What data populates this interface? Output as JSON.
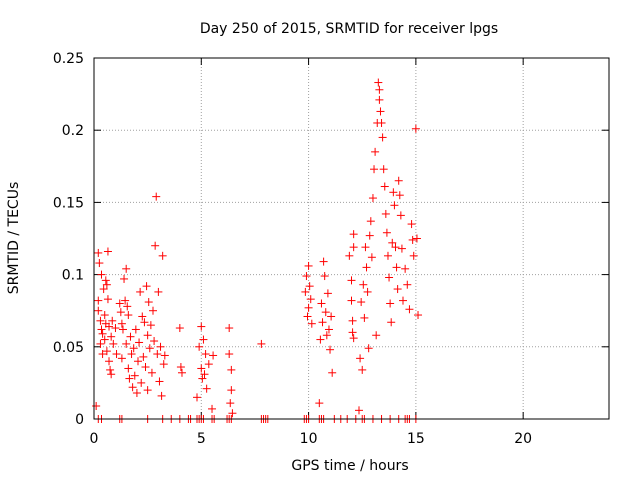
{
  "chart_data": {
    "type": "scatter",
    "title": "Day 250 of 2015, SRMTID for receiver lpgs",
    "xlabel": "GPS time / hours",
    "ylabel": "SRMTID / TECUs",
    "xlim": [
      0,
      24
    ],
    "ylim": [
      0,
      0.25
    ],
    "xticks": [
      0,
      5,
      10,
      15,
      20
    ],
    "xtick_labels": [
      "0",
      "5",
      "10",
      "15",
      "20"
    ],
    "yticks": [
      0,
      0.05,
      0.1,
      0.15,
      0.2,
      0.25
    ],
    "ytick_labels": [
      "0",
      "0.05",
      "0.1",
      "0.15",
      "0.2",
      "0.25"
    ],
    "grid": true,
    "marker": "plus",
    "color": "#ff0000",
    "series": [
      {
        "name": "SRMTID",
        "points": [
          [
            0.1,
            0.009
          ],
          [
            0.2,
            0.115
          ],
          [
            0.2,
            0.082
          ],
          [
            0.2,
            0.075
          ],
          [
            0.25,
            0.108
          ],
          [
            0.3,
            0.068
          ],
          [
            0.3,
            0.052
          ],
          [
            0.35,
            0.1
          ],
          [
            0.35,
            0.062
          ],
          [
            0.4,
            0.059
          ],
          [
            0.4,
            0.045
          ],
          [
            0.45,
            0.09
          ],
          [
            0.5,
            0.072
          ],
          [
            0.5,
            0.055
          ],
          [
            0.55,
            0.096
          ],
          [
            0.55,
            0.066
          ],
          [
            0.6,
            0.093
          ],
          [
            0.6,
            0.047
          ],
          [
            0.65,
            0.116
          ],
          [
            0.65,
            0.083
          ],
          [
            0.7,
            0.064
          ],
          [
            0.7,
            0.04
          ],
          [
            0.75,
            0.034
          ],
          [
            0.8,
            0.057
          ],
          [
            0.8,
            0.031
          ],
          [
            0.85,
            0.068
          ],
          [
            0.9,
            0.052
          ],
          [
            1.0,
            0.063
          ],
          [
            1.05,
            0.045
          ],
          [
            1.2,
            0.08
          ],
          [
            1.25,
            0.074
          ],
          [
            1.3,
            0.066
          ],
          [
            1.3,
            0.042
          ],
          [
            1.35,
            0.062
          ],
          [
            1.4,
            0.097
          ],
          [
            1.45,
            0.082
          ],
          [
            1.5,
            0.104
          ],
          [
            1.5,
            0.052
          ],
          [
            1.55,
            0.078
          ],
          [
            1.6,
            0.072
          ],
          [
            1.6,
            0.035
          ],
          [
            1.65,
            0.028
          ],
          [
            1.7,
            0.057
          ],
          [
            1.75,
            0.045
          ],
          [
            1.8,
            0.022
          ],
          [
            1.85,
            0.049
          ],
          [
            1.9,
            0.03
          ],
          [
            1.95,
            0.062
          ],
          [
            2.0,
            0.018
          ],
          [
            2.05,
            0.04
          ],
          [
            2.1,
            0.053
          ],
          [
            2.15,
            0.088
          ],
          [
            2.2,
            0.025
          ],
          [
            2.25,
            0.071
          ],
          [
            2.3,
            0.043
          ],
          [
            2.35,
            0.067
          ],
          [
            2.4,
            0.036
          ],
          [
            2.45,
            0.092
          ],
          [
            2.5,
            0.058
          ],
          [
            2.5,
            0.02
          ],
          [
            2.55,
            0.081
          ],
          [
            2.6,
            0.049
          ],
          [
            2.65,
            0.065
          ],
          [
            2.7,
            0.032
          ],
          [
            2.75,
            0.075
          ],
          [
            2.8,
            0.054
          ],
          [
            2.85,
            0.12
          ],
          [
            2.9,
            0.154
          ],
          [
            2.95,
            0.045
          ],
          [
            3.0,
            0.088
          ],
          [
            3.05,
            0.026
          ],
          [
            3.1,
            0.05
          ],
          [
            3.15,
            0.016
          ],
          [
            3.2,
            0.113
          ],
          [
            3.25,
            0.038
          ],
          [
            3.3,
            0.044
          ],
          [
            4.0,
            0.063
          ],
          [
            4.05,
            0.036
          ],
          [
            4.1,
            0.032
          ],
          [
            4.8,
            0.015
          ],
          [
            4.9,
            0.05
          ],
          [
            5.0,
            0.064
          ],
          [
            5.0,
            0.035
          ],
          [
            5.05,
            0.028
          ],
          [
            5.1,
            0.055
          ],
          [
            5.15,
            0.031
          ],
          [
            5.2,
            0.045
          ],
          [
            5.25,
            0.021
          ],
          [
            5.35,
            0.038
          ],
          [
            5.5,
            0.007
          ],
          [
            5.55,
            0.044
          ],
          [
            6.3,
            0.063
          ],
          [
            6.3,
            0.045
          ],
          [
            6.35,
            0.011
          ],
          [
            6.4,
            0.02
          ],
          [
            6.4,
            0.034
          ],
          [
            6.45,
            0.004
          ],
          [
            7.8,
            0.052
          ],
          [
            9.85,
            0.088
          ],
          [
            9.9,
            0.099
          ],
          [
            9.95,
            0.071
          ],
          [
            10.0,
            0.106
          ],
          [
            10.0,
            0.077
          ],
          [
            10.05,
            0.092
          ],
          [
            10.1,
            0.083
          ],
          [
            10.15,
            0.066
          ],
          [
            10.5,
            0.011
          ],
          [
            10.55,
            0.055
          ],
          [
            10.6,
            0.08
          ],
          [
            10.65,
            0.067
          ],
          [
            10.7,
            0.109
          ],
          [
            10.75,
            0.099
          ],
          [
            10.8,
            0.074
          ],
          [
            10.85,
            0.058
          ],
          [
            10.9,
            0.087
          ],
          [
            10.95,
            0.062
          ],
          [
            11.0,
            0.048
          ],
          [
            11.05,
            0.071
          ],
          [
            11.1,
            0.032
          ],
          [
            11.9,
            0.113
          ],
          [
            12.0,
            0.096
          ],
          [
            12.0,
            0.082
          ],
          [
            12.05,
            0.068
          ],
          [
            12.05,
            0.06
          ],
          [
            12.1,
            0.119
          ],
          [
            12.1,
            0.056
          ],
          [
            12.1,
            0.128
          ],
          [
            12.35,
            0.006
          ],
          [
            12.4,
            0.042
          ],
          [
            12.45,
            0.081
          ],
          [
            12.5,
            0.034
          ],
          [
            12.55,
            0.093
          ],
          [
            12.6,
            0.07
          ],
          [
            12.65,
            0.119
          ],
          [
            12.7,
            0.105
          ],
          [
            12.75,
            0.088
          ],
          [
            12.8,
            0.049
          ],
          [
            12.85,
            0.127
          ],
          [
            12.9,
            0.137
          ],
          [
            12.95,
            0.112
          ],
          [
            13.0,
            0.153
          ],
          [
            13.05,
            0.173
          ],
          [
            13.1,
            0.185
          ],
          [
            13.15,
            0.058
          ],
          [
            13.2,
            0.205
          ],
          [
            13.25,
            0.233
          ],
          [
            13.3,
            0.228
          ],
          [
            13.3,
            0.221
          ],
          [
            13.35,
            0.213
          ],
          [
            13.4,
            0.205
          ],
          [
            13.45,
            0.195
          ],
          [
            13.5,
            0.173
          ],
          [
            13.55,
            0.161
          ],
          [
            13.6,
            0.142
          ],
          [
            13.65,
            0.129
          ],
          [
            13.7,
            0.113
          ],
          [
            13.75,
            0.098
          ],
          [
            13.8,
            0.08
          ],
          [
            13.85,
            0.067
          ],
          [
            13.9,
            0.122
          ],
          [
            13.95,
            0.157
          ],
          [
            14.0,
            0.148
          ],
          [
            14.05,
            0.119
          ],
          [
            14.1,
            0.105
          ],
          [
            14.15,
            0.09
          ],
          [
            14.2,
            0.165
          ],
          [
            14.25,
            0.155
          ],
          [
            14.3,
            0.141
          ],
          [
            14.35,
            0.118
          ],
          [
            14.4,
            0.082
          ],
          [
            14.5,
            0.104
          ],
          [
            14.6,
            0.093
          ],
          [
            14.7,
            0.076
          ],
          [
            14.8,
            0.135
          ],
          [
            14.85,
            0.124
          ],
          [
            14.9,
            0.113
          ],
          [
            15.0,
            0.201
          ],
          [
            15.05,
            0.125
          ],
          [
            15.1,
            0.072
          ]
        ],
        "zero_points": [
          0.2,
          0.35,
          1.2,
          1.3,
          2.5,
          3.2,
          3.6,
          4.0,
          4.4,
          4.5,
          4.8,
          4.9,
          5.0,
          5.1,
          5.5,
          5.6,
          6.2,
          6.3,
          6.4,
          7.8,
          7.9,
          8.0,
          8.1,
          9.8,
          9.9,
          10.0,
          10.5,
          10.6,
          10.7,
          11.2,
          11.5,
          11.8,
          12.2,
          12.5,
          12.6,
          13.0,
          13.4,
          13.8,
          14.2,
          14.5,
          14.6,
          14.7,
          15.0
        ]
      }
    ]
  }
}
